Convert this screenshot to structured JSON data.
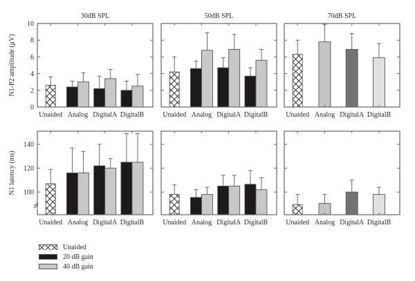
{
  "chart_data": {
    "type": "bar",
    "layout": "2x3 small multiples, grouped bars with upward error bars",
    "column_titles": [
      "30dB SPL",
      "50dB SPL",
      "70dB SPL"
    ],
    "categories": [
      "Unaided",
      "Analog",
      "DigitalA",
      "DigitalB"
    ],
    "legend": {
      "placement": "bottom-left",
      "entries": [
        {
          "label": "Unaided",
          "pattern": "crosshatch",
          "color": "#ffffff"
        },
        {
          "label": "20 dB gain",
          "pattern": "solid",
          "color": "#1e1a1b"
        },
        {
          "label": "40 dB gain",
          "pattern": "solid",
          "color": "#c8c8c8"
        }
      ]
    },
    "rows": [
      {
        "ylabel": "N1-P2 amplitude (μV)",
        "ylim": [
          0,
          10
        ],
        "yticks": [
          0,
          2,
          4,
          6,
          8,
          10
        ],
        "axis_break": false,
        "panels": [
          {
            "title": "30dB SPL",
            "groups": [
              {
                "category": "Unaided",
                "bars": [
                  {
                    "series": "Unaided",
                    "value": 2.6,
                    "error_top": 3.6
                  }
                ]
              },
              {
                "category": "Analog",
                "bars": [
                  {
                    "series": "20 dB gain",
                    "value": 2.4,
                    "error_top": 3.1
                  },
                  {
                    "series": "40 dB gain",
                    "value": 3.0,
                    "error_top": 4.1
                  }
                ]
              },
              {
                "category": "DigitalA",
                "bars": [
                  {
                    "series": "20 dB gain",
                    "value": 2.2,
                    "error_top": 3.7
                  },
                  {
                    "series": "40 dB gain",
                    "value": 3.4,
                    "error_top": 4.5
                  }
                ]
              },
              {
                "category": "DigitalB",
                "bars": [
                  {
                    "series": "20 dB gain",
                    "value": 2.0,
                    "error_top": 3.1
                  },
                  {
                    "series": "40 dB gain",
                    "value": 2.5,
                    "error_top": 3.9
                  }
                ]
              }
            ]
          },
          {
            "title": "50dB SPL",
            "groups": [
              {
                "category": "Unaided",
                "bars": [
                  {
                    "series": "Unaided",
                    "value": 4.2,
                    "error_top": 6.0
                  }
                ]
              },
              {
                "category": "Analog",
                "bars": [
                  {
                    "series": "20 dB gain",
                    "value": 4.6,
                    "error_top": 5.5
                  },
                  {
                    "series": "40 dB gain",
                    "value": 6.8,
                    "error_top": 8.9
                  }
                ]
              },
              {
                "category": "DigitalA",
                "bars": [
                  {
                    "series": "20 dB gain",
                    "value": 4.7,
                    "error_top": 5.9
                  },
                  {
                    "series": "40 dB gain",
                    "value": 6.9,
                    "error_top": 8.7
                  }
                ]
              },
              {
                "category": "DigitalB",
                "bars": [
                  {
                    "series": "20 dB gain",
                    "value": 3.7,
                    "error_top": 4.7
                  },
                  {
                    "series": "40 dB gain",
                    "value": 5.6,
                    "error_top": 6.9
                  }
                ]
              }
            ]
          },
          {
            "title": "70dB SPL",
            "groups": [
              {
                "category": "Unaided",
                "bars": [
                  {
                    "series": "Unaided",
                    "value": 6.3,
                    "error_top": 8.0
                  }
                ]
              },
              {
                "category": "Analog",
                "bars": [
                  {
                    "series": "Analog",
                    "value": 7.8,
                    "error_top": 9.9,
                    "color": "#c4c4c4"
                  }
                ]
              },
              {
                "category": "DigitalA",
                "bars": [
                  {
                    "series": "DigitalA",
                    "value": 6.9,
                    "error_top": 8.8,
                    "color": "#737373"
                  }
                ]
              },
              {
                "category": "DigitalB",
                "bars": [
                  {
                    "series": "DigitalB",
                    "value": 5.9,
                    "error_top": 7.6,
                    "color": "#e0e0e0"
                  }
                ]
              }
            ]
          }
        ]
      },
      {
        "ylabel": "N1 latency (ms)",
        "ylim": [
          81,
          151
        ],
        "yticks": [
          100,
          120,
          140
        ],
        "axis_break": true,
        "panels": [
          {
            "title": "30dB SPL",
            "groups": [
              {
                "category": "Unaided",
                "bars": [
                  {
                    "series": "Unaided",
                    "value": 107,
                    "error_top": 119
                  }
                ]
              },
              {
                "category": "Analog",
                "bars": [
                  {
                    "series": "20 dB gain",
                    "value": 116,
                    "error_top": 137
                  },
                  {
                    "series": "40 dB gain",
                    "value": 116,
                    "error_top": 134
                  }
                ]
              },
              {
                "category": "DigitalA",
                "bars": [
                  {
                    "series": "20 dB gain",
                    "value": 122,
                    "error_top": 140
                  },
                  {
                    "series": "40 dB gain",
                    "value": 120,
                    "error_top": 128
                  }
                ]
              },
              {
                "category": "DigitalB",
                "bars": [
                  {
                    "series": "20 dB gain",
                    "value": 125,
                    "error_top": 149
                  },
                  {
                    "series": "40 dB gain",
                    "value": 125,
                    "error_top": 149
                  }
                ]
              }
            ]
          },
          {
            "title": "50dB SPL",
            "groups": [
              {
                "category": "Unaided",
                "bars": [
                  {
                    "series": "Unaided",
                    "value": 98,
                    "error_top": 106
                  }
                ]
              },
              {
                "category": "Analog",
                "bars": [
                  {
                    "series": "20 dB gain",
                    "value": 95.5,
                    "error_top": 102
                  },
                  {
                    "series": "40 dB gain",
                    "value": 98,
                    "error_top": 104
                  }
                ]
              },
              {
                "category": "DigitalA",
                "bars": [
                  {
                    "series": "20 dB gain",
                    "value": 105,
                    "error_top": 114
                  },
                  {
                    "series": "40 dB gain",
                    "value": 105,
                    "error_top": 114
                  }
                ]
              },
              {
                "category": "DigitalB",
                "bars": [
                  {
                    "series": "20 dB gain",
                    "value": 106.5,
                    "error_top": 118
                  },
                  {
                    "series": "40 dB gain",
                    "value": 102,
                    "error_top": 112
                  }
                ]
              }
            ]
          },
          {
            "title": "70dB SPL",
            "groups": [
              {
                "category": "Unaided",
                "bars": [
                  {
                    "series": "Unaided",
                    "value": 89.5,
                    "error_top": 98
                  }
                ]
              },
              {
                "category": "Analog",
                "bars": [
                  {
                    "series": "Analog",
                    "value": 90.5,
                    "error_top": 98,
                    "color": "#c4c4c4"
                  }
                ]
              },
              {
                "category": "DigitalA",
                "bars": [
                  {
                    "series": "DigitalA",
                    "value": 100,
                    "error_top": 110,
                    "color": "#737373"
                  }
                ]
              },
              {
                "category": "DigitalB",
                "bars": [
                  {
                    "series": "DigitalB",
                    "value": 98,
                    "error_top": 104,
                    "color": "#e0e0e0"
                  }
                ]
              }
            ]
          }
        ]
      }
    ]
  },
  "colors": {
    "axis": "#666666",
    "unaided_fill": "#ffffff",
    "gain20": "#1e1a1b",
    "gain40": "#c8c8c8",
    "error_bar": "#666666"
  }
}
